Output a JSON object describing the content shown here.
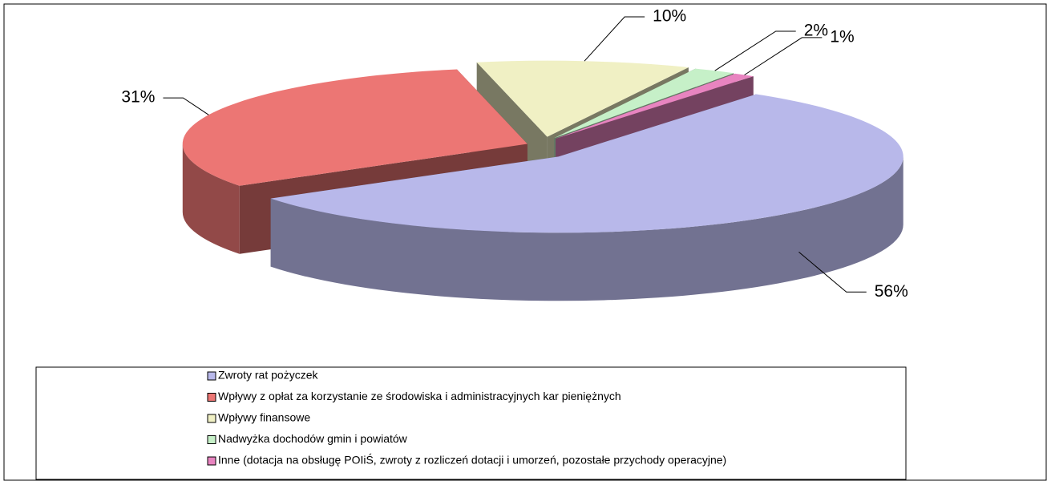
{
  "chart_data": {
    "type": "pie",
    "categories": [
      "Zwroty rat pożyczek",
      "Wpływy z opłat za korzystanie ze środowiska i administracyjnych kar pieniężnych",
      "Wpływy finansowe",
      "Nadwyżka dochodów gmin i powiatów",
      "Inne (dotacja na obsługę POIiŚ, zwroty z rozliczeń dotacji i umorzeń, pozostałe przychody operacyjne)"
    ],
    "values": [
      56,
      31,
      10,
      2,
      1
    ],
    "value_labels": [
      "56%",
      "31%",
      "10%",
      "2%",
      "1%"
    ],
    "colors": [
      "#b8b8ea",
      "#ec7674",
      "#f0f0c4",
      "#c6f0c8",
      "#e884c0"
    ],
    "legend": "bottom"
  }
}
